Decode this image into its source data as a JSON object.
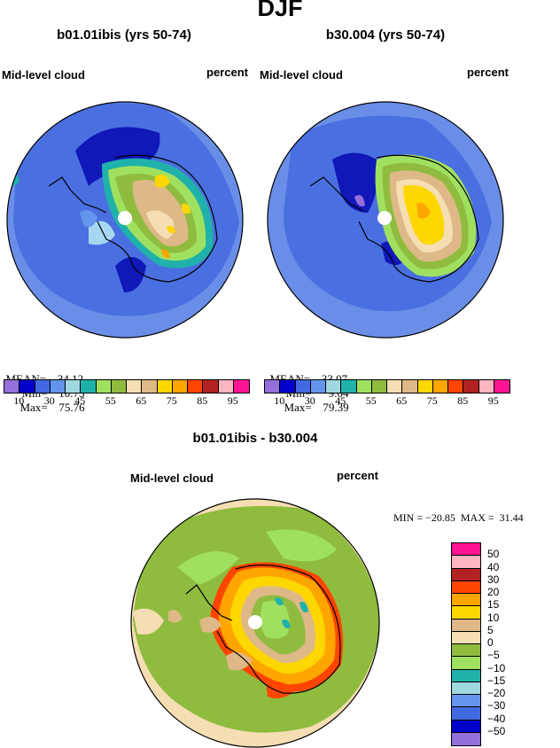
{
  "season": "DJF",
  "panels": [
    {
      "title": "b01.01ibis (yrs 50-74)",
      "left_label": "Mid-level cloud",
      "right_label": "percent",
      "stats": {
        "mean_label": "MEAN=",
        "mean": "34.12",
        "min_label": "Min=",
        "min": "10.75",
        "max_label": "Max=",
        "max": "75.76"
      }
    },
    {
      "title": "b30.004 (yrs 50-74)",
      "left_label": "Mid-level cloud",
      "right_label": "percent",
      "stats": {
        "mean_label": "MEAN=",
        "mean": "33.07",
        "min_label": "Min=",
        "min": "9.04",
        "max_label": "Max=",
        "max": "79.39"
      }
    }
  ],
  "colorbar": {
    "colors": [
      "#9370db",
      "#0000c8",
      "#4169e1",
      "#6495ed",
      "#a0d8e0",
      "#20b2aa",
      "#a0e060",
      "#8fbc3f",
      "#f5deb3",
      "#deb887",
      "#ffd700",
      "#ffa500",
      "#ff4500",
      "#b22222",
      "#ffb6c1",
      "#ff1493"
    ],
    "labels": [
      "10",
      "30",
      "45",
      "55",
      "65",
      "75",
      "85",
      "95"
    ]
  },
  "diff": {
    "title": "b01.01ibis - b30.004",
    "left_label": "Mid-level cloud",
    "right_label": "percent",
    "stats_text": "MIN = −20.85  MAX =  31.44",
    "colorbar": {
      "colors": [
        "#ff1493",
        "#ffb6c1",
        "#b22222",
        "#ff4500",
        "#ffa500",
        "#ffd700",
        "#deb887",
        "#f5deb3",
        "#8fbc3f",
        "#a0e060",
        "#20b2aa",
        "#a0d8e0",
        "#6495ed",
        "#4169e1",
        "#0000c8",
        "#9370db"
      ],
      "labels": [
        "50",
        "40",
        "30",
        "20",
        "15",
        "10",
        "5",
        "0",
        "−5",
        "−10",
        "−15",
        "−20",
        "−30",
        "−40",
        "−50"
      ]
    }
  }
}
